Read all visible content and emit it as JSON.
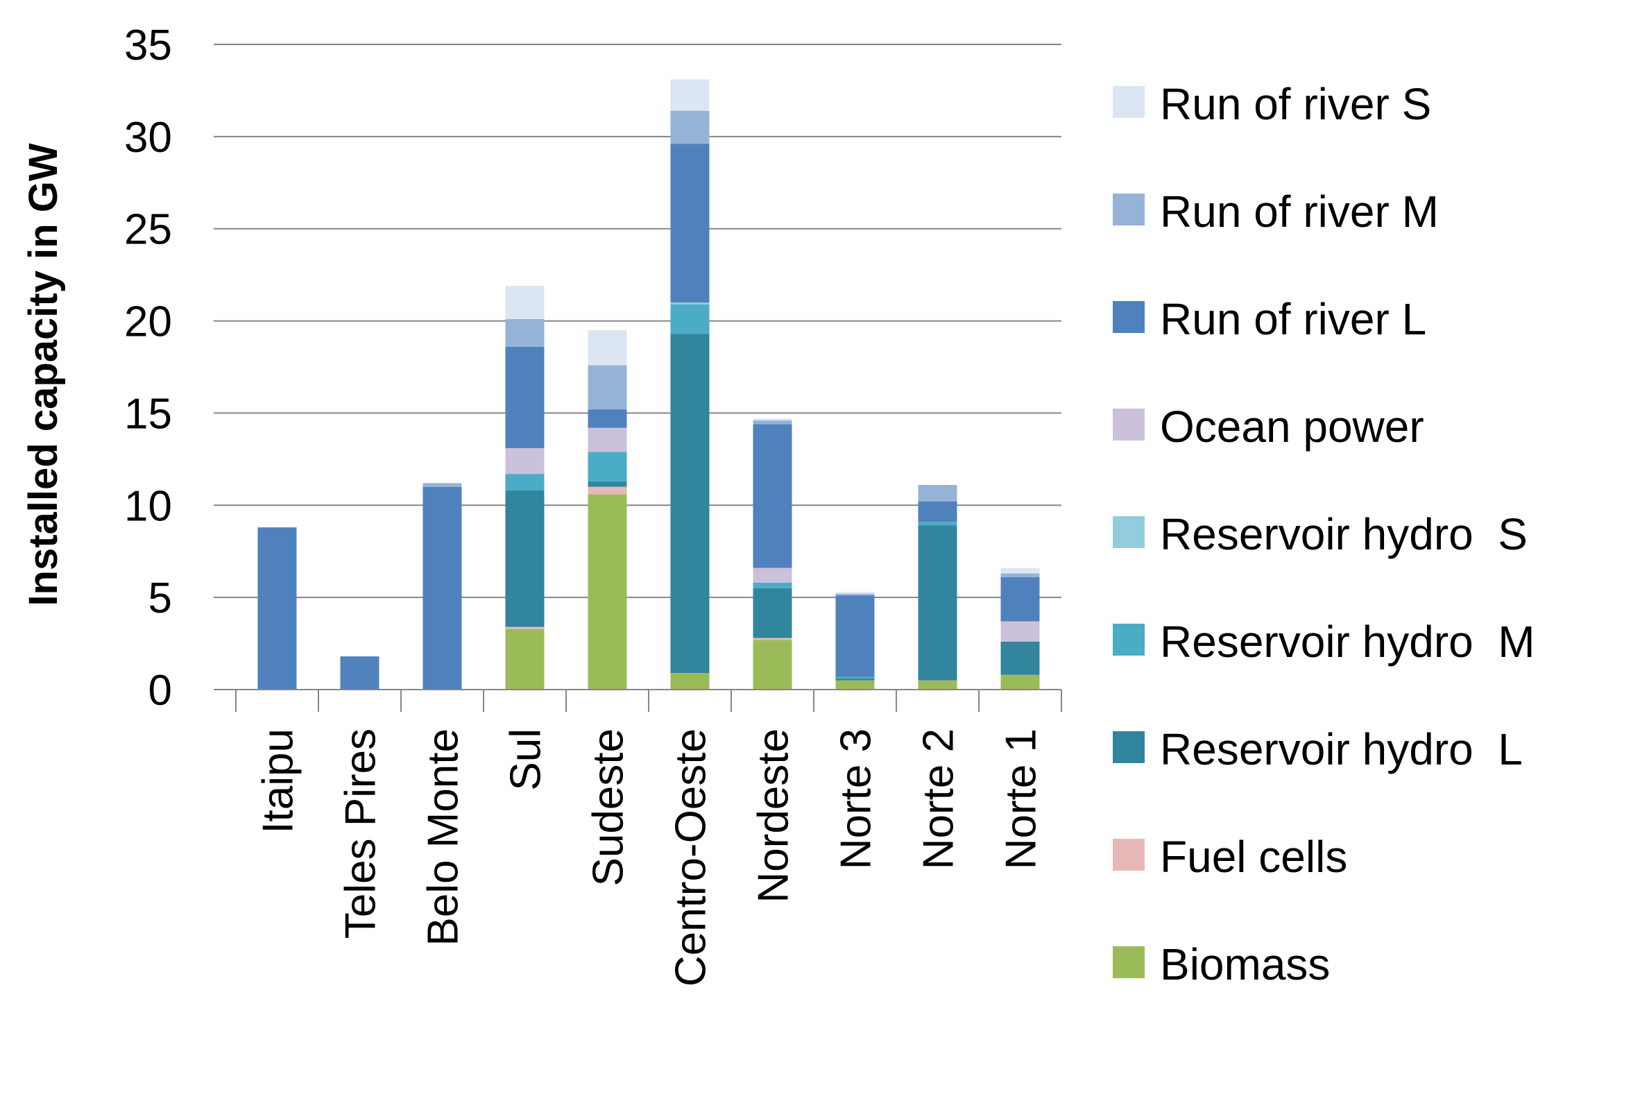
{
  "chart_data": {
    "type": "bar",
    "stacked": true,
    "title": "",
    "xlabel": "",
    "ylabel": "Installed capacity in GW",
    "ylim": [
      0,
      35
    ],
    "yticks": [
      0,
      5,
      10,
      15,
      20,
      25,
      30,
      35
    ],
    "grid": true,
    "legend_position": "right",
    "categories": [
      "Itaipu",
      "Teles Pires",
      "Belo Monte",
      "Sul",
      "Sudeste",
      "Centro-Oeste",
      "Nordeste",
      "Norte 3",
      "Norte 2",
      "Norte 1"
    ],
    "series": [
      {
        "name": "Biomass",
        "color": "#9BBB59",
        "values": [
          0,
          0,
          0,
          3.3,
          10.6,
          0.9,
          2.7,
          0.5,
          0.5,
          0.8
        ]
      },
      {
        "name": "Fuel cells",
        "color": "#E6B9B8",
        "values": [
          0,
          0,
          0,
          0.1,
          0.4,
          0,
          0.1,
          0,
          0,
          0
        ]
      },
      {
        "name": "Reservoir hydro  L",
        "color": "#31859C",
        "values": [
          0,
          0,
          0,
          7.4,
          0.3,
          18.4,
          2.7,
          0.1,
          8.4,
          1.8
        ]
      },
      {
        "name": "Reservoir hydro  M",
        "color": "#4BACC6",
        "values": [
          0,
          0,
          0,
          0.9,
          1.6,
          1.6,
          0.3,
          0.1,
          0.2,
          0
        ]
      },
      {
        "name": "Reservoir hydro  S",
        "color": "#93CDDD",
        "values": [
          0,
          0,
          0,
          0,
          0,
          0.1,
          0,
          0,
          0,
          0
        ]
      },
      {
        "name": "Ocean power",
        "color": "#CCC1DA",
        "values": [
          0,
          0,
          0,
          1.4,
          1.3,
          0,
          0.8,
          0,
          0,
          1.1
        ]
      },
      {
        "name": "Run of river L",
        "color": "#4F81BD",
        "values": [
          8.8,
          1.8,
          11.0,
          5.5,
          1.0,
          8.6,
          7.8,
          4.4,
          1.1,
          2.4
        ]
      },
      {
        "name": "Run of river M",
        "color": "#95B3D7",
        "values": [
          0,
          0,
          0.2,
          1.5,
          2.4,
          1.8,
          0.2,
          0.1,
          0.9,
          0.2
        ]
      },
      {
        "name": "Run of river S",
        "color": "#DCE6F2",
        "values": [
          0,
          0,
          0,
          1.8,
          1.9,
          1.7,
          0.1,
          0.1,
          0,
          0.3
        ]
      }
    ],
    "legend_order": [
      "Run of river S",
      "Run of river M",
      "Run of river L",
      "Ocean power",
      "Reservoir hydro  S",
      "Reservoir hydro  M",
      "Reservoir hydro  L",
      "Fuel cells",
      "Biomass"
    ]
  },
  "colors": {
    "gridline": "#868686",
    "axis": "#868686"
  }
}
